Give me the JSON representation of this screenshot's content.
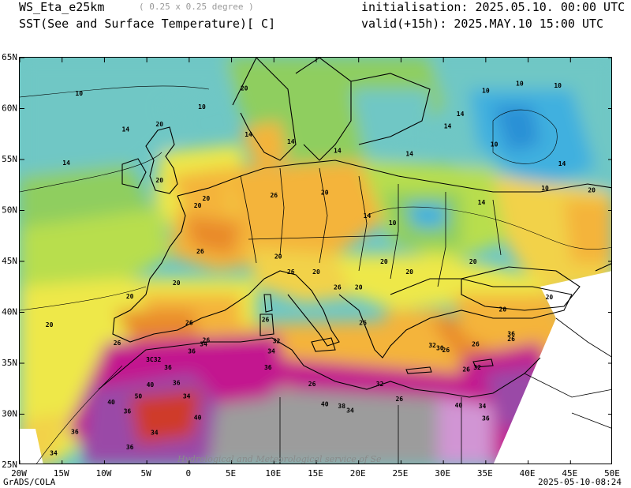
{
  "header": {
    "model": "WS_Eta_e25km",
    "resolution": "( 0.25 x 0.25 degree )",
    "field": "SST(See and Surface Temperature)[ C]",
    "initialisation": "initialisation: 2025.05.10. 00:00 UTC",
    "valid": "valid(+15h): 2025.MAY.10 15:00 UTC"
  },
  "axes": {
    "lon_labels": [
      "20W",
      "15W",
      "10W",
      "5W",
      "0",
      "5E",
      "10E",
      "15E",
      "20E",
      "25E",
      "30E",
      "35E",
      "40E",
      "45E",
      "50E"
    ],
    "lat_labels": [
      "65N",
      "60N",
      "55N",
      "50N",
      "45N",
      "40N",
      "35N",
      "30N",
      "25N"
    ]
  },
  "contour_labels": [
    {
      "t": "10",
      "lon": -13,
      "lat": 61.5
    },
    {
      "t": "10",
      "lon": 1.5,
      "lat": 60.2
    },
    {
      "t": "20",
      "lon": 6.5,
      "lat": 62.0
    },
    {
      "t": "10",
      "lon": 35,
      "lat": 61.8
    },
    {
      "t": "10",
      "lon": 39,
      "lat": 62.5
    },
    {
      "t": "10",
      "lon": 43.5,
      "lat": 62.3
    },
    {
      "t": "14",
      "lon": -7.5,
      "lat": 58.0
    },
    {
      "t": "20",
      "lon": -3.5,
      "lat": 58.5
    },
    {
      "t": "14",
      "lon": 7,
      "lat": 57.5
    },
    {
      "t": "14",
      "lon": 32,
      "lat": 59.5
    },
    {
      "t": "14",
      "lon": 30.5,
      "lat": 58.3
    },
    {
      "t": "14",
      "lon": 12,
      "lat": 56.8
    },
    {
      "t": "14",
      "lon": 17.5,
      "lat": 55.9
    },
    {
      "t": "14",
      "lon": 26,
      "lat": 55.6
    },
    {
      "t": "10",
      "lon": 36,
      "lat": 56.5
    },
    {
      "t": "14",
      "lon": -14.5,
      "lat": 54.7
    },
    {
      "t": "20",
      "lon": -3.5,
      "lat": 53.0
    },
    {
      "t": "14",
      "lon": 44,
      "lat": 54.6
    },
    {
      "t": "10",
      "lon": 42,
      "lat": 52.2
    },
    {
      "t": "20",
      "lon": 47.5,
      "lat": 52.0
    },
    {
      "t": "20",
      "lon": 1,
      "lat": 50.5
    },
    {
      "t": "20",
      "lon": 2,
      "lat": 51.2
    },
    {
      "t": "26",
      "lon": 10,
      "lat": 51.5
    },
    {
      "t": "20",
      "lon": 16,
      "lat": 51.8
    },
    {
      "t": "14",
      "lon": 21,
      "lat": 49.5
    },
    {
      "t": "10",
      "lon": 24,
      "lat": 48.8
    },
    {
      "t": "14",
      "lon": 34.5,
      "lat": 50.8
    },
    {
      "t": "26",
      "lon": 1.3,
      "lat": 46.0
    },
    {
      "t": "20",
      "lon": 10.5,
      "lat": 45.5
    },
    {
      "t": "26",
      "lon": 12,
      "lat": 44.0
    },
    {
      "t": "20",
      "lon": 15,
      "lat": 44.0
    },
    {
      "t": "20",
      "lon": 23,
      "lat": 45.0
    },
    {
      "t": "20",
      "lon": 26,
      "lat": 44.0
    },
    {
      "t": "20",
      "lon": 33.5,
      "lat": 45.0
    },
    {
      "t": "20",
      "lon": -1.5,
      "lat": 42.9
    },
    {
      "t": "26",
      "lon": 17.5,
      "lat": 42.5
    },
    {
      "t": "20",
      "lon": 20,
      "lat": 42.5
    },
    {
      "t": "20",
      "lon": -7,
      "lat": 41.6
    },
    {
      "t": "20",
      "lon": 42.5,
      "lat": 41.5
    },
    {
      "t": "20",
      "lon": 37,
      "lat": 40.3
    },
    {
      "t": "20",
      "lon": -16.5,
      "lat": 38.8
    },
    {
      "t": "26",
      "lon": 0,
      "lat": 39.0
    },
    {
      "t": "26",
      "lon": 9,
      "lat": 39.3
    },
    {
      "t": "26",
      "lon": -8.5,
      "lat": 37.0
    },
    {
      "t": "26",
      "lon": 20.5,
      "lat": 39.0
    },
    {
      "t": "32",
      "lon": 28.7,
      "lat": 36.8
    },
    {
      "t": "30",
      "lon": 29.6,
      "lat": 36.5
    },
    {
      "t": "26",
      "lon": 30.3,
      "lat": 36.3
    },
    {
      "t": "26",
      "lon": 33.8,
      "lat": 36.9
    },
    {
      "t": "26",
      "lon": 38,
      "lat": 37.4
    },
    {
      "t": "36",
      "lon": 38,
      "lat": 37.9
    },
    {
      "t": "36",
      "lon": 0.3,
      "lat": 36.2
    },
    {
      "t": "34",
      "lon": 1.7,
      "lat": 36.9
    },
    {
      "t": "26",
      "lon": 2,
      "lat": 37.3
    },
    {
      "t": "32",
      "lon": 10.3,
      "lat": 37.2
    },
    {
      "t": "34",
      "lon": 9.7,
      "lat": 36.2
    },
    {
      "t": "3C32",
      "lon": -4.2,
      "lat": 35.4
    },
    {
      "t": "36",
      "lon": -2.5,
      "lat": 34.6
    },
    {
      "t": "36",
      "lon": 9.3,
      "lat": 34.6
    },
    {
      "t": "32",
      "lon": 34,
      "lat": 34.6
    },
    {
      "t": "26",
      "lon": 32.7,
      "lat": 34.4
    },
    {
      "t": "26",
      "lon": 14.5,
      "lat": 33.0
    },
    {
      "t": "32",
      "lon": 22.5,
      "lat": 33.0
    },
    {
      "t": "40",
      "lon": -4.6,
      "lat": 32.9
    },
    {
      "t": "36",
      "lon": -1.5,
      "lat": 33.1
    },
    {
      "t": "34",
      "lon": -0.3,
      "lat": 31.8
    },
    {
      "t": "50",
      "lon": -6,
      "lat": 31.8
    },
    {
      "t": "40",
      "lon": -9.2,
      "lat": 31.2
    },
    {
      "t": "36",
      "lon": -7.3,
      "lat": 30.3
    },
    {
      "t": "26",
      "lon": 24.8,
      "lat": 31.5
    },
    {
      "t": "40",
      "lon": 31.8,
      "lat": 30.9
    },
    {
      "t": "34",
      "lon": 34.6,
      "lat": 30.8
    },
    {
      "t": "40",
      "lon": 16,
      "lat": 31.0
    },
    {
      "t": "38",
      "lon": 18,
      "lat": 30.8
    },
    {
      "t": "34",
      "lon": 19,
      "lat": 30.4
    },
    {
      "t": "40",
      "lon": 1,
      "lat": 29.7
    },
    {
      "t": "36",
      "lon": 35,
      "lat": 29.6
    },
    {
      "t": "34",
      "lon": -4.1,
      "lat": 28.2
    },
    {
      "t": "36",
      "lon": -13.5,
      "lat": 28.3
    },
    {
      "t": "36",
      "lon": -7,
      "lat": 26.8
    },
    {
      "t": "34",
      "lon": -16,
      "lat": 26.2
    }
  ],
  "credit": "Hydrological and Meteorological service of Se",
  "footer": {
    "left": "GrADS/COLA",
    "right": "2025-05-10-08:24"
  },
  "colors": {
    "cold_blue": "#2aa7e0",
    "cool_teal": "#6fc7c5",
    "mild_green": "#8fce5e",
    "yellow": "#eee84a",
    "orange": "#f4b43a",
    "dark_orange": "#e98a2c",
    "red": "#cf3b2a",
    "magenta": "#c3168f",
    "violet": "#9a4aa7",
    "no_data": "#9c9c9c"
  }
}
